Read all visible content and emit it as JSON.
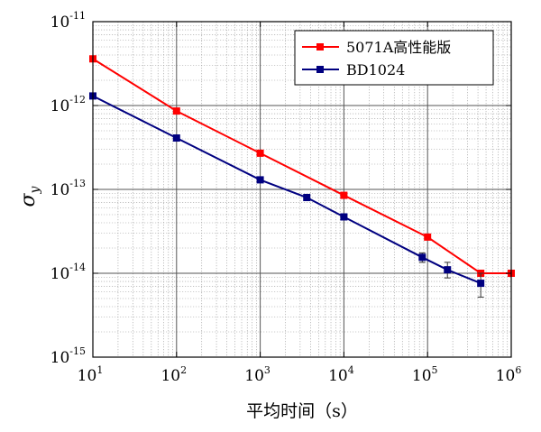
{
  "chart_data": {
    "type": "line",
    "xscale": "log",
    "yscale": "log",
    "xlim": [
      10,
      1000000
    ],
    "ylim": [
      1e-15,
      1e-11
    ],
    "xlabel": "平均时间（s）",
    "ylabel_main": "σ",
    "ylabel_sub": "y",
    "x_ticks": [
      {
        "base": "10",
        "exp": "1"
      },
      {
        "base": "10",
        "exp": "2"
      },
      {
        "base": "10",
        "exp": "3"
      },
      {
        "base": "10",
        "exp": "4"
      },
      {
        "base": "10",
        "exp": "5"
      },
      {
        "base": "10",
        "exp": "6"
      }
    ],
    "y_ticks": [
      {
        "base": "10",
        "exp": "-15"
      },
      {
        "base": "10",
        "exp": "-14"
      },
      {
        "base": "10",
        "exp": "-13"
      },
      {
        "base": "10",
        "exp": "-12"
      },
      {
        "base": "10",
        "exp": "-11"
      }
    ],
    "grid": true,
    "legend_position": "top-right",
    "series": [
      {
        "name": "5071A高性能版",
        "color": "#ff0000",
        "marker": "square",
        "points": [
          {
            "x": 10,
            "y": 3.6e-12
          },
          {
            "x": 100,
            "y": 8.6e-13
          },
          {
            "x": 1000,
            "y": 2.7e-13
          },
          {
            "x": 10000,
            "y": 8.5e-14
          },
          {
            "x": 100000,
            "y": 2.7e-14
          },
          {
            "x": 432000,
            "y": 1e-14
          },
          {
            "x": 1000000,
            "y": 1e-14
          }
        ]
      },
      {
        "name": "BD1024",
        "color": "#000080",
        "marker": "square",
        "points": [
          {
            "x": 10,
            "y": 1.3e-12
          },
          {
            "x": 100,
            "y": 4.1e-13
          },
          {
            "x": 1000,
            "y": 1.3e-13
          },
          {
            "x": 3600,
            "y": 8e-14
          },
          {
            "x": 10000,
            "y": 4.7e-14
          },
          {
            "x": 86400,
            "y": 1.55e-14,
            "err": [
              1.35e-14,
              1.75e-14
            ]
          },
          {
            "x": 172800,
            "y": 1.1e-14,
            "err": [
              8.8e-15,
              1.35e-14
            ]
          },
          {
            "x": 432000,
            "y": 7.6e-15,
            "err": [
              5.2e-15,
              1e-14
            ]
          }
        ]
      }
    ]
  }
}
